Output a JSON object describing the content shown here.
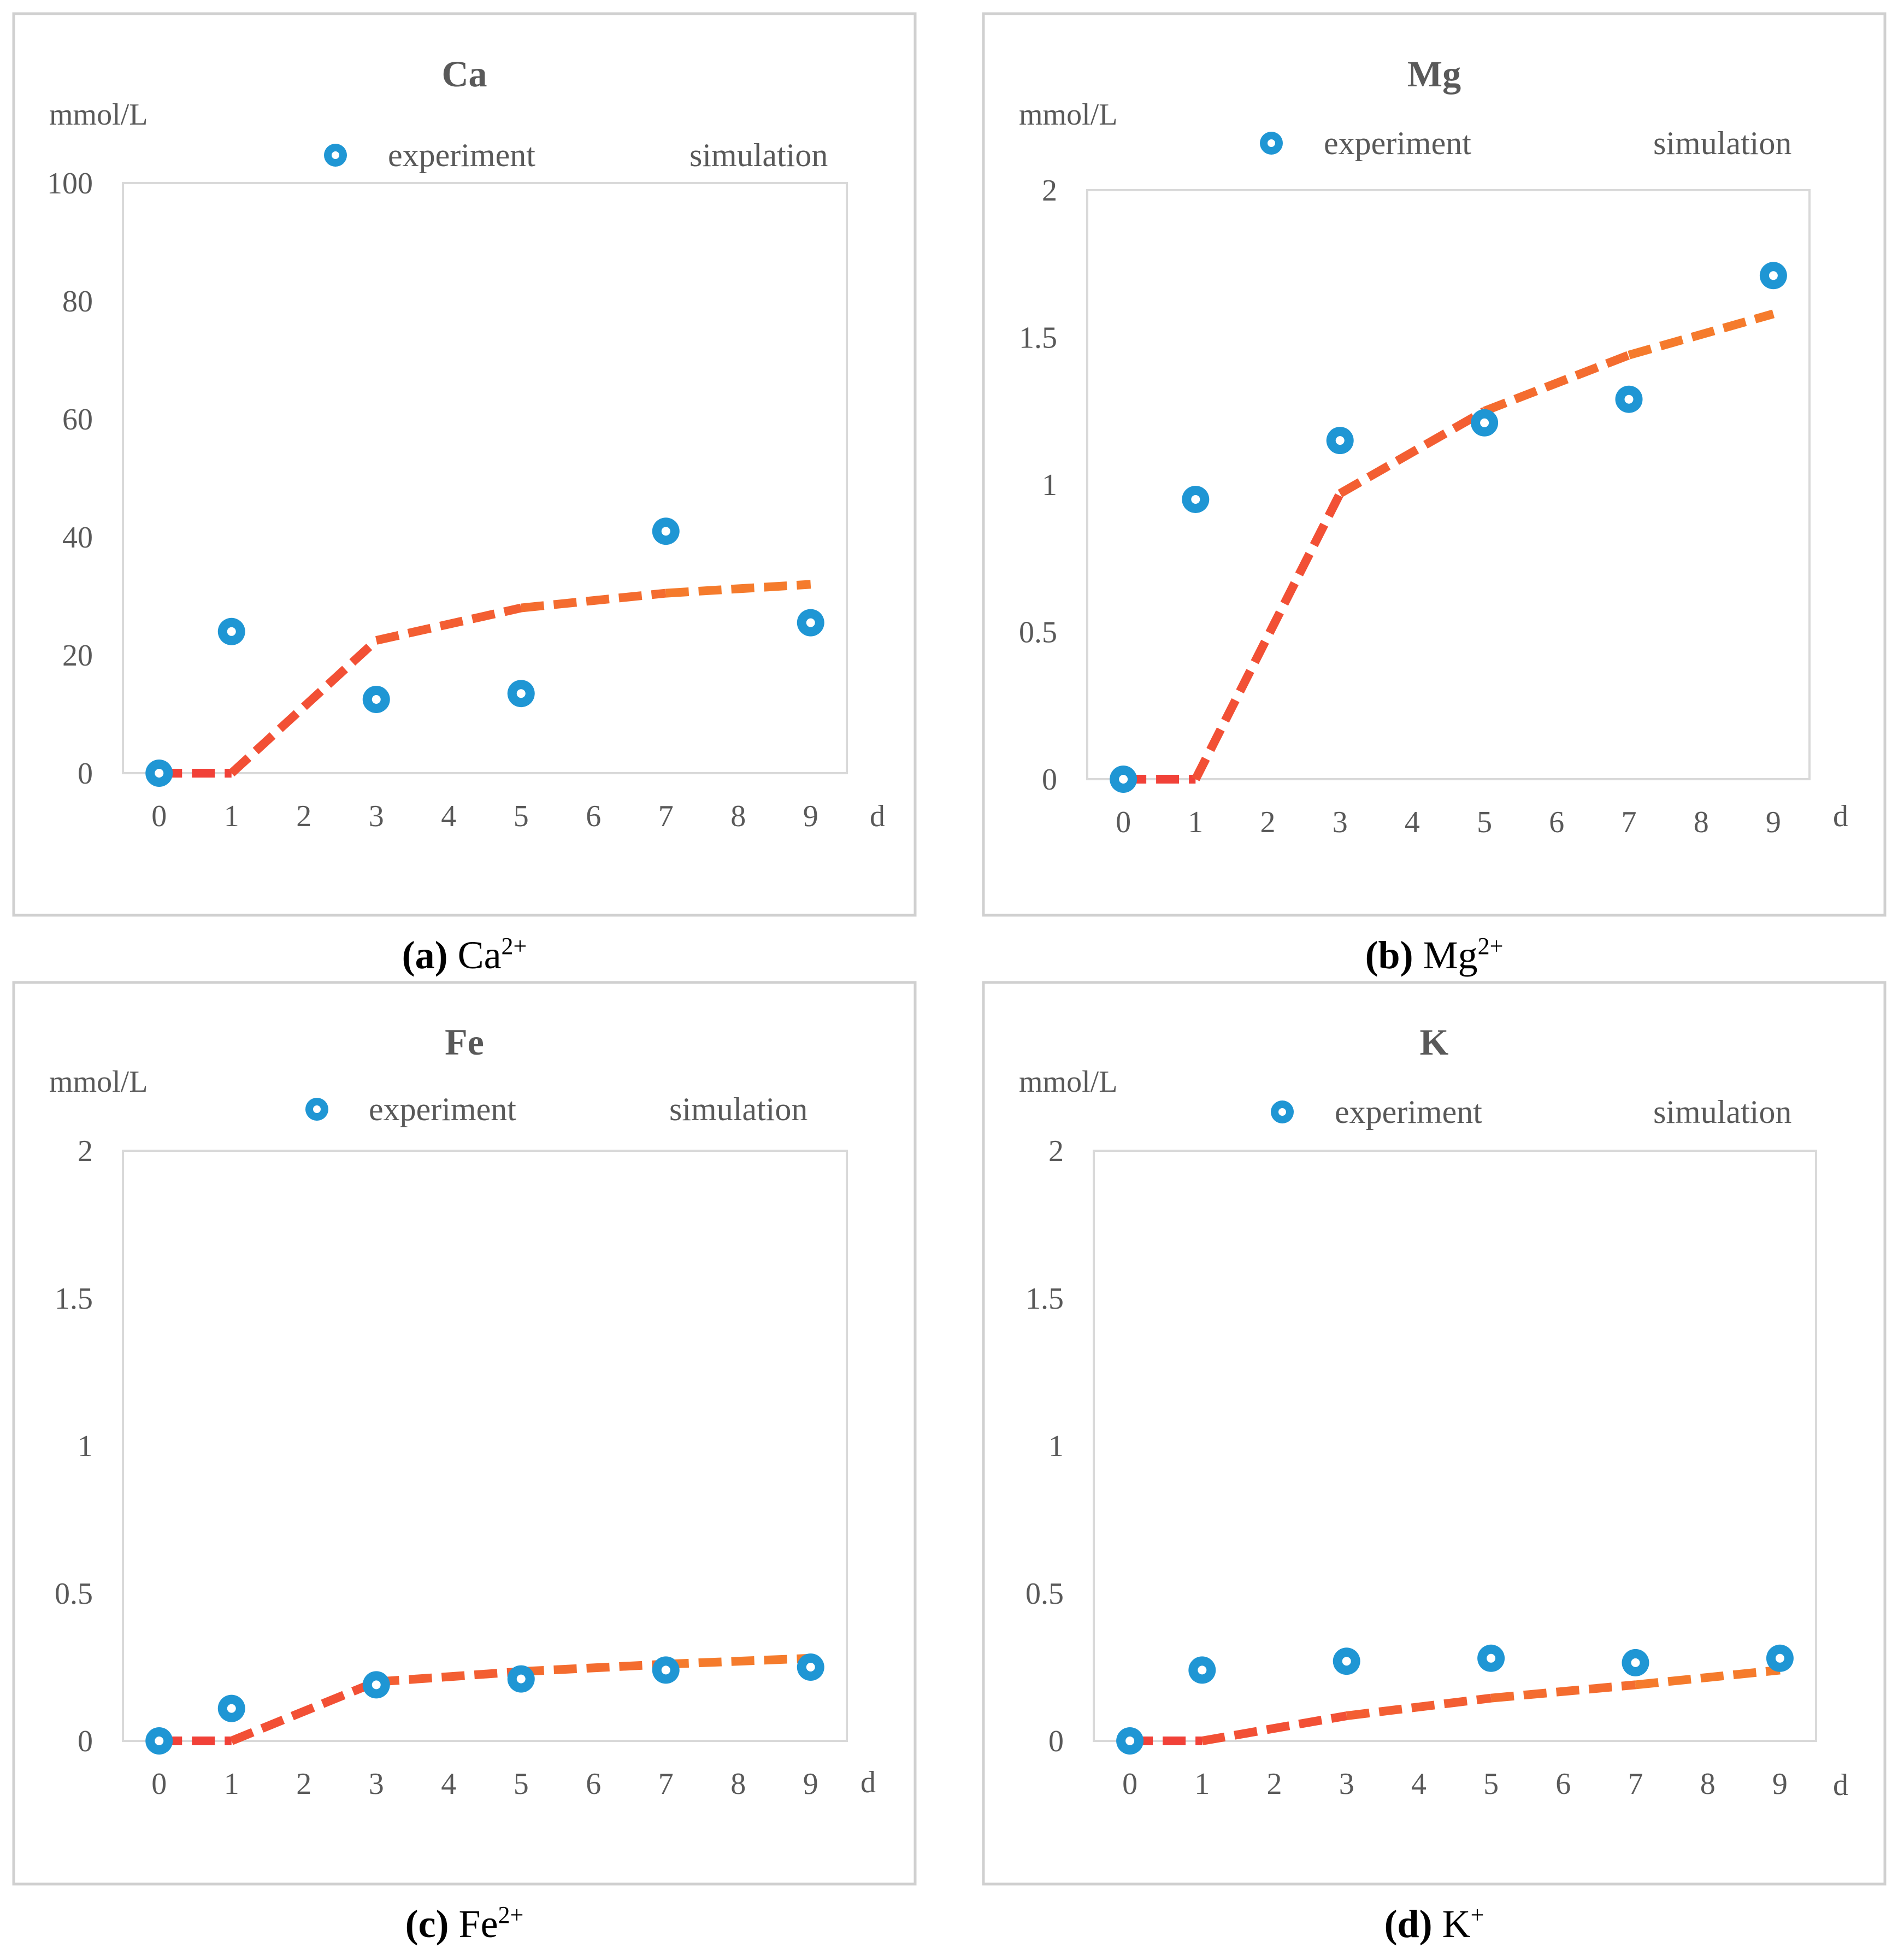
{
  "colors": {
    "marker_outer": "#1f96d4",
    "marker_inner": "#ffffff",
    "sim_start": "#f03a3a",
    "sim_end": "#f5822a",
    "axis_text": "#595959",
    "frame": "#d0d0d0"
  },
  "chart_data": [
    {
      "type": "scatter",
      "title": "Ca",
      "ylabel": "mmol/L",
      "xlabel": "d",
      "xticks": [
        "0",
        "1",
        "2",
        "3",
        "4",
        "5",
        "6",
        "7",
        "8",
        "9"
      ],
      "yticks": [
        "0",
        "20",
        "40",
        "60",
        "80",
        "100"
      ],
      "xlim": [
        -0.5,
        9.5
      ],
      "ylim": [
        0,
        100
      ],
      "legend_position": "top",
      "series": [
        {
          "name": "experiment",
          "style": "markers",
          "x": [
            0,
            1,
            3,
            5,
            7,
            9
          ],
          "values": [
            0,
            24,
            12.5,
            13.5,
            41,
            25.5
          ]
        },
        {
          "name": "simulation",
          "style": "dashed-line",
          "x": [
            0,
            1,
            3,
            5,
            7,
            9
          ],
          "values": [
            0,
            0,
            22.5,
            28,
            30.5,
            32
          ]
        }
      ],
      "caption": {
        "label": "(a)",
        "ion": "Ca",
        "charge": "2+"
      }
    },
    {
      "type": "scatter",
      "title": "Mg",
      "ylabel": "mmol/L",
      "xlabel": "d",
      "xticks": [
        "0",
        "1",
        "2",
        "3",
        "4",
        "5",
        "6",
        "7",
        "8",
        "9"
      ],
      "yticks": [
        "0",
        "0.5",
        "1",
        "1.5",
        "2"
      ],
      "xlim": [
        -0.5,
        9.5
      ],
      "ylim": [
        0,
        2
      ],
      "legend_position": "top",
      "series": [
        {
          "name": "experiment",
          "style": "markers",
          "x": [
            0,
            1,
            3,
            5,
            7,
            9
          ],
          "values": [
            0,
            0.95,
            1.15,
            1.21,
            1.29,
            1.71
          ]
        },
        {
          "name": "simulation",
          "style": "dashed-line",
          "x": [
            0,
            1,
            3,
            5,
            7,
            9
          ],
          "values": [
            0,
            0,
            0.97,
            1.25,
            1.44,
            1.58
          ]
        }
      ],
      "caption": {
        "label": "(b)",
        "ion": "Mg",
        "charge": "2+"
      }
    },
    {
      "type": "scatter",
      "title": "Fe",
      "ylabel": "mmol/L",
      "xlabel": "d",
      "xticks": [
        "0",
        "1",
        "2",
        "3",
        "4",
        "5",
        "6",
        "7",
        "8",
        "9"
      ],
      "yticks": [
        "0",
        "0.5",
        "1",
        "1.5",
        "2"
      ],
      "xlim": [
        -0.5,
        9.5
      ],
      "ylim": [
        0,
        2
      ],
      "legend_position": "top",
      "series": [
        {
          "name": "experiment",
          "style": "markers",
          "x": [
            0,
            1,
            3,
            5,
            7,
            9
          ],
          "values": [
            0,
            0.11,
            0.19,
            0.21,
            0.24,
            0.25
          ]
        },
        {
          "name": "simulation",
          "style": "dashed-line",
          "x": [
            0,
            1,
            3,
            5,
            7,
            9
          ],
          "values": [
            0,
            0,
            0.2,
            0.235,
            0.26,
            0.28
          ]
        }
      ],
      "caption": {
        "label": "(c)",
        "ion": "Fe",
        "charge": "2+"
      }
    },
    {
      "type": "scatter",
      "title": "K",
      "ylabel": "mmol/L",
      "xlabel": "d",
      "xticks": [
        "0",
        "1",
        "2",
        "3",
        "4",
        "5",
        "6",
        "7",
        "8",
        "9"
      ],
      "yticks": [
        "0",
        "0.5",
        "1",
        "1.5",
        "2"
      ],
      "xlim": [
        -0.5,
        9.5
      ],
      "ylim": [
        0,
        2
      ],
      "legend_position": "top",
      "series": [
        {
          "name": "experiment",
          "style": "markers",
          "x": [
            0,
            1,
            3,
            5,
            7,
            9
          ],
          "values": [
            0,
            0.24,
            0.27,
            0.28,
            0.265,
            0.28
          ]
        },
        {
          "name": "simulation",
          "style": "dashed-line",
          "x": [
            0,
            1,
            3,
            5,
            7,
            9
          ],
          "values": [
            0,
            0,
            0.085,
            0.145,
            0.19,
            0.24
          ]
        }
      ],
      "caption": {
        "label": "(d)",
        "ion": "K",
        "charge": "+"
      }
    }
  ]
}
